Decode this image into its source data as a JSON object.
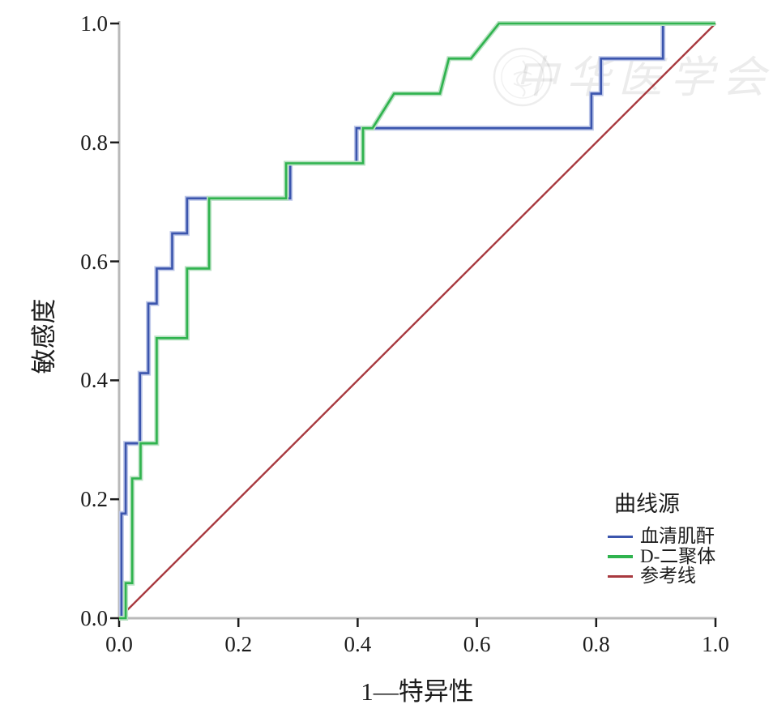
{
  "axes": {
    "x_title": "1—特异性",
    "y_title": "敏感度",
    "x_ticks": [
      "0.0",
      "0.2",
      "0.4",
      "0.6",
      "0.8",
      "1.0"
    ],
    "y_ticks": [
      "0.0",
      "0.2",
      "0.4",
      "0.6",
      "0.8",
      "1.0"
    ]
  },
  "legend": {
    "title": "曲线源",
    "items": [
      {
        "label": "血清肌酐",
        "color": "#3b55ad"
      },
      {
        "label": "D-二聚体",
        "color": "#2fb34e"
      },
      {
        "label": "参考线",
        "color": "#a8393f"
      }
    ]
  },
  "watermark": {
    "text": "中华医学会"
  },
  "colors": {
    "axis_line": "#b9b9b9",
    "tick_mark": "#1c1c1c",
    "text": "#1c1c1c",
    "watermark": "rgba(0,0,0,0.07)"
  },
  "chart_data": {
    "type": "line",
    "title": "",
    "xlabel": "1—特异性",
    "ylabel": "敏感度",
    "xlim": [
      0,
      1
    ],
    "ylim": [
      0,
      1
    ],
    "grid": false,
    "legend_position": "lower-right",
    "note": "ROC curves, step interpolation; points are [1-specificity, sensitivity]",
    "series": [
      {
        "id": "serum-creatinine",
        "name": "血清肌酐",
        "color": "#3b55ad",
        "halo": "#bcc6e8",
        "points": [
          [
            0.0,
            0.0
          ],
          [
            0.004,
            0.0
          ],
          [
            0.004,
            0.176
          ],
          [
            0.011,
            0.176
          ],
          [
            0.011,
            0.294
          ],
          [
            0.035,
            0.294
          ],
          [
            0.035,
            0.412
          ],
          [
            0.049,
            0.412
          ],
          [
            0.049,
            0.529
          ],
          [
            0.063,
            0.529
          ],
          [
            0.063,
            0.588
          ],
          [
            0.089,
            0.588
          ],
          [
            0.089,
            0.647
          ],
          [
            0.114,
            0.647
          ],
          [
            0.114,
            0.706
          ],
          [
            0.287,
            0.706
          ],
          [
            0.287,
            0.765
          ],
          [
            0.398,
            0.765
          ],
          [
            0.398,
            0.824
          ],
          [
            0.792,
            0.824
          ],
          [
            0.792,
            0.882
          ],
          [
            0.808,
            0.882
          ],
          [
            0.808,
            0.941
          ],
          [
            0.912,
            0.941
          ],
          [
            0.912,
            1.0
          ],
          [
            1.0,
            1.0
          ]
        ]
      },
      {
        "id": "d-dimer",
        "name": "D-二聚体",
        "color": "#2fb34e",
        "halo": "#b9e2c3",
        "points": [
          [
            0.0,
            0.0
          ],
          [
            0.011,
            0.0
          ],
          [
            0.011,
            0.059
          ],
          [
            0.022,
            0.059
          ],
          [
            0.022,
            0.235
          ],
          [
            0.036,
            0.235
          ],
          [
            0.036,
            0.294
          ],
          [
            0.063,
            0.294
          ],
          [
            0.063,
            0.471
          ],
          [
            0.114,
            0.471
          ],
          [
            0.114,
            0.588
          ],
          [
            0.151,
            0.588
          ],
          [
            0.151,
            0.706
          ],
          [
            0.28,
            0.706
          ],
          [
            0.28,
            0.765
          ],
          [
            0.409,
            0.765
          ],
          [
            0.409,
            0.824
          ],
          [
            0.425,
            0.824
          ],
          [
            0.461,
            0.882
          ],
          [
            0.538,
            0.882
          ],
          [
            0.553,
            0.941
          ],
          [
            0.59,
            0.941
          ],
          [
            0.637,
            1.0
          ],
          [
            1.0,
            1.0
          ]
        ]
      },
      {
        "id": "reference-line",
        "name": "参考线",
        "color": "#a8393f",
        "halo": null,
        "points": [
          [
            0.0,
            0.0
          ],
          [
            1.0,
            1.0
          ]
        ]
      }
    ]
  }
}
